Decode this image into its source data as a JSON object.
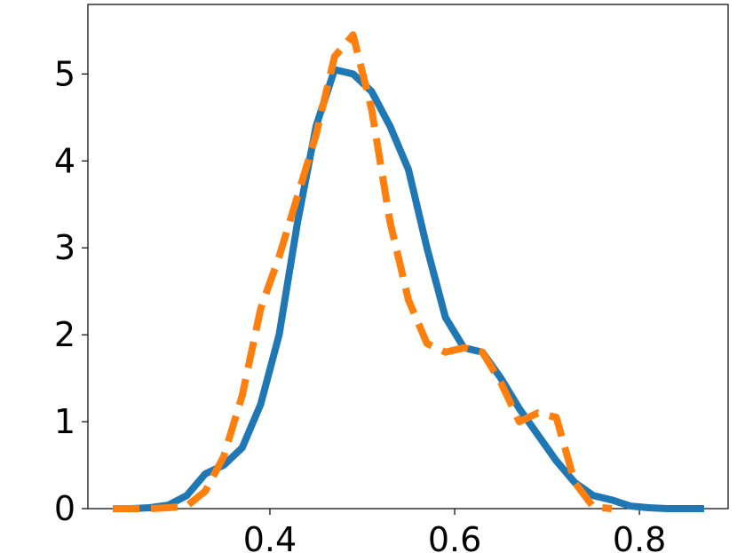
{
  "chart_data": {
    "type": "line",
    "x": [
      0.23,
      0.25,
      0.27,
      0.29,
      0.31,
      0.33,
      0.35,
      0.37,
      0.39,
      0.41,
      0.43,
      0.45,
      0.47,
      0.49,
      0.51,
      0.53,
      0.55,
      0.57,
      0.59,
      0.61,
      0.63,
      0.65,
      0.67,
      0.69,
      0.71,
      0.73,
      0.75,
      0.77,
      0.79,
      0.81,
      0.83,
      0.85,
      0.87
    ],
    "series": [
      {
        "color": "#1f77b4",
        "linestyle": "solid",
        "values": [
          0,
          0,
          0.01,
          0.04,
          0.15,
          0.4,
          0.5,
          0.7,
          1.2,
          2.0,
          3.3,
          4.4,
          5.05,
          5.0,
          4.8,
          4.4,
          3.9,
          3.0,
          2.2,
          1.85,
          1.8,
          1.5,
          1.15,
          0.85,
          0.55,
          0.3,
          0.15,
          0.1,
          0.03,
          0.01,
          0,
          0,
          0
        ]
      },
      {
        "color": "#ff7f0e",
        "linestyle": "dashed",
        "values": [
          0,
          0,
          0,
          0.01,
          0.03,
          0.2,
          0.6,
          1.3,
          2.3,
          2.9,
          3.6,
          4.3,
          5.2,
          5.45,
          4.6,
          3.3,
          2.4,
          1.9,
          1.8,
          1.85,
          1.8,
          1.45,
          1.0,
          1.1,
          1.05,
          0.3,
          0.02,
          0,
          null,
          null,
          null,
          null,
          null
        ]
      }
    ],
    "xlim": [
      0.203,
      0.896
    ],
    "ylim": [
      0,
      5.8
    ],
    "xticks": [
      0.4,
      0.6,
      0.8
    ],
    "yticks": [
      0,
      1,
      2,
      3,
      4,
      5
    ],
    "grid": false
  }
}
